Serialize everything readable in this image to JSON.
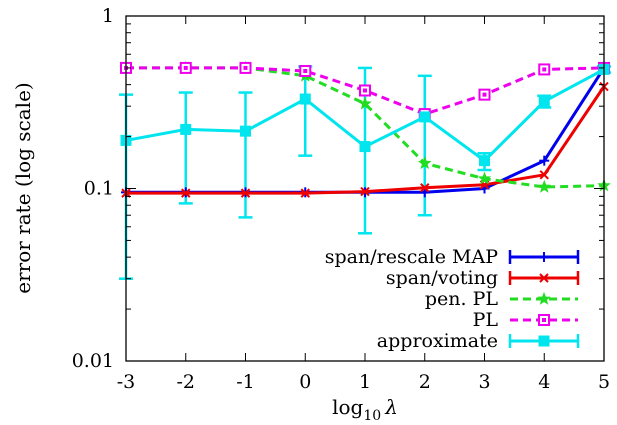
{
  "chart_data": {
    "type": "line",
    "xlabel_prefix": "log",
    "xlabel_sub": "10",
    "xlabel_symbol": "λ",
    "ylabel": "error rate (log scale)",
    "x": [
      -3,
      -2,
      -1,
      0,
      1,
      2,
      3,
      4,
      5
    ],
    "x_tick_labels": [
      "-3",
      "-2",
      "-1",
      "0",
      "1",
      "2",
      "3",
      "4",
      "5"
    ],
    "xlim": [
      -3,
      5
    ],
    "y_scale": "log",
    "ylim": [
      0.01,
      1
    ],
    "y_ticks": [
      0.01,
      0.1,
      1
    ],
    "y_tick_labels": [
      "0.01",
      "0.1",
      "1"
    ],
    "grid": false,
    "legend_position": "bottom-right",
    "series": [
      {
        "name": "span/rescale MAP",
        "color": "#0000ee",
        "dashed": false,
        "marker": "plus",
        "values": [
          0.095,
          0.095,
          0.095,
          0.095,
          0.095,
          0.095,
          0.1,
          0.145,
          0.5
        ]
      },
      {
        "name": "span/voting",
        "color": "#ee0000",
        "dashed": false,
        "marker": "cross",
        "values": [
          0.094,
          0.094,
          0.094,
          0.094,
          0.096,
          0.101,
          0.105,
          0.12,
          0.39
        ]
      },
      {
        "name": "pen. PL",
        "color": "#22dd22",
        "dashed": true,
        "marker": "star",
        "values": [
          0.5,
          0.5,
          0.5,
          0.45,
          0.31,
          0.14,
          0.114,
          0.102,
          0.104
        ]
      },
      {
        "name": "PL",
        "color": "#ee00ee",
        "dashed": true,
        "marker": "open-square",
        "values": [
          0.5,
          0.5,
          0.5,
          0.48,
          0.37,
          0.27,
          0.35,
          0.49,
          0.5
        ]
      },
      {
        "name": "approximate",
        "color": "#00e5ee",
        "dashed": false,
        "marker": "filled-square",
        "values": [
          0.19,
          0.22,
          0.215,
          0.33,
          0.175,
          0.26,
          0.145,
          0.32,
          0.49
        ],
        "error_low": [
          0.03,
          0.082,
          0.068,
          0.155,
          0.055,
          0.07,
          0.128,
          0.295,
          0.47
        ],
        "error_high": [
          0.35,
          0.36,
          0.36,
          0.51,
          0.5,
          0.45,
          0.16,
          0.345,
          0.51
        ]
      }
    ]
  }
}
